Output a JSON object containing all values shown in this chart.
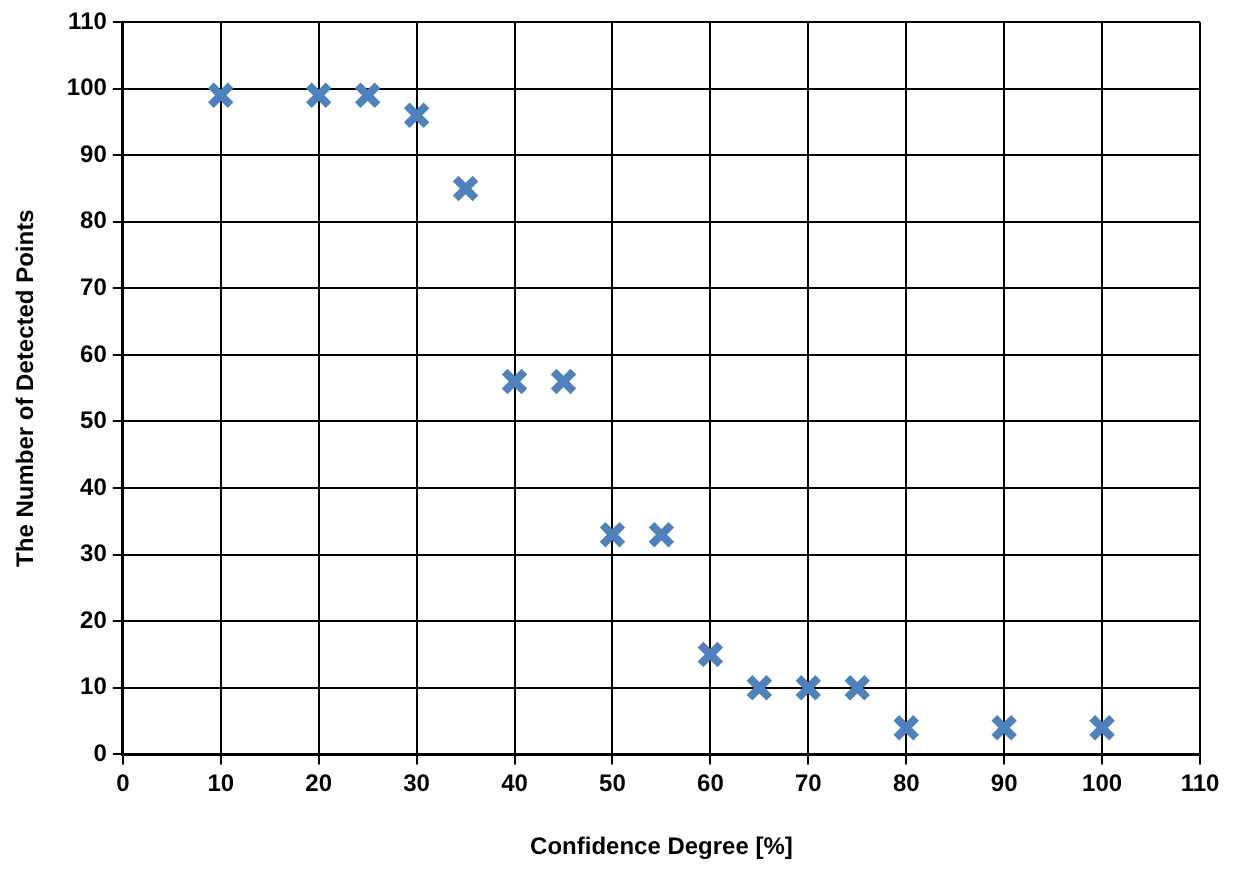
{
  "chart_data": {
    "type": "scatter",
    "xlabel": "Confidence Degree [%]",
    "ylabel": "The Number of Detected Points",
    "x": [
      10,
      20,
      25,
      30,
      35,
      40,
      45,
      50,
      55,
      60,
      65,
      70,
      75,
      80,
      90,
      100
    ],
    "series": [
      {
        "color": "#4f81bd",
        "values": [
          99,
          99,
          99,
          96,
          85,
          56,
          56,
          33,
          33,
          15,
          10,
          10,
          10,
          4,
          4,
          4
        ]
      }
    ],
    "xlim": [
      0,
      110
    ],
    "xticks": [
      0,
      10,
      20,
      30,
      40,
      50,
      60,
      70,
      80,
      90,
      100,
      110
    ],
    "ylim": [
      0,
      110
    ],
    "yticks": [
      0,
      10,
      20,
      30,
      40,
      50,
      60,
      70,
      80,
      90,
      100,
      110
    ],
    "grid": true,
    "legend": false,
    "marker": "cross"
  }
}
